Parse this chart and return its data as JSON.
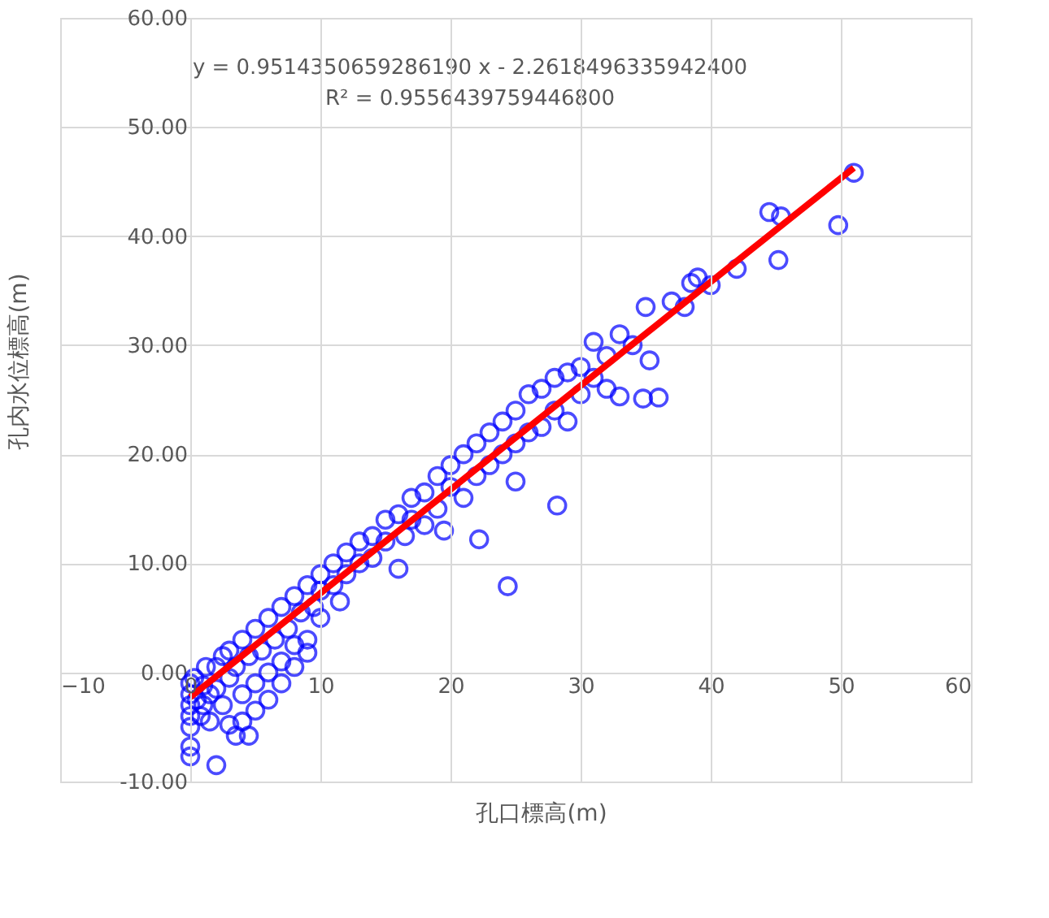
{
  "chart_data": {
    "type": "scatter",
    "xlabel": "孔口標高(m)",
    "ylabel": "孔内水位標高(m)",
    "annotations": [
      "y = 0.9514350659286190 x - 2.2618496335942400",
      "R² = 0.9556439759446800"
    ],
    "xlim": [
      -10,
      60
    ],
    "xticks": [
      -10,
      0,
      10,
      20,
      30,
      40,
      50,
      60
    ],
    "ylim": [
      -10,
      60
    ],
    "yticks": [
      {
        "value": -10,
        "label": "-10.00"
      },
      {
        "value": 0,
        "label": "0.00"
      },
      {
        "value": 10,
        "label": "10.00"
      },
      {
        "value": 20,
        "label": "20.00"
      },
      {
        "value": 30,
        "label": "30.00"
      },
      {
        "value": 40,
        "label": "40.00"
      },
      {
        "value": 50,
        "label": "50.00"
      },
      {
        "value": 60,
        "label": "60.00"
      }
    ],
    "grid": true,
    "marker": "circle",
    "legend": false,
    "series": [
      {
        "color": "#0000ff",
        "x": [
          0,
          0,
          0,
          0,
          0,
          0,
          0,
          0.3,
          0.5,
          0.8,
          1,
          1,
          1.2,
          1.5,
          1.5,
          2,
          2,
          2,
          2.5,
          2.5,
          3,
          3,
          3,
          3.5,
          3.5,
          4,
          4,
          4,
          4.5,
          4.5,
          5,
          5,
          5,
          5.5,
          6,
          6,
          6,
          6.5,
          7,
          7,
          7,
          7.5,
          8,
          8,
          8,
          8.5,
          9,
          9,
          9,
          9.5,
          10,
          10,
          10,
          11,
          11,
          11.5,
          12,
          12,
          13,
          13,
          14,
          14,
          15,
          15,
          16,
          16,
          16.5,
          17,
          17,
          18,
          18,
          19,
          19,
          19.5,
          20,
          20,
          21,
          21,
          22,
          22,
          22.2,
          23,
          23,
          24,
          24,
          24.4,
          25,
          25,
          25,
          26,
          26,
          27,
          27,
          28,
          28,
          28.2,
          29,
          29,
          30,
          30,
          31,
          31,
          32,
          32,
          33,
          33,
          34,
          34.8,
          35,
          35.3,
          36,
          37,
          38,
          38.5,
          39,
          40,
          42,
          44.5,
          45.2,
          45.4,
          49.8,
          51
        ],
        "values": [
          -1,
          -2,
          -3,
          -4,
          -5,
          -6.8,
          -7.7,
          -0.5,
          -2.5,
          -4,
          -1.2,
          -3,
          0.5,
          -2,
          -4.5,
          -8.5,
          0.5,
          -1.5,
          -3,
          1.5,
          -0.5,
          2,
          -4.8,
          -5.8,
          0.5,
          3,
          -2,
          -4.5,
          -5.8,
          1.5,
          4,
          -1,
          -3.5,
          2,
          5,
          0,
          -2.5,
          3,
          6,
          1,
          -1,
          4,
          7,
          2.5,
          0.5,
          5.5,
          8,
          3,
          1.8,
          6,
          9,
          5,
          7.5,
          10,
          8,
          6.5,
          11,
          9,
          12,
          10,
          12.5,
          10.5,
          14,
          12,
          14.5,
          9.5,
          12.5,
          16,
          14,
          16.5,
          13.5,
          18,
          15,
          13,
          19,
          17,
          20,
          16,
          21,
          18,
          12.2,
          22,
          19,
          23,
          20,
          7.9,
          24,
          21,
          17.5,
          25.5,
          22,
          26,
          22.5,
          27,
          24,
          15.3,
          27.5,
          23,
          28,
          25.5,
          30.3,
          27,
          29,
          26,
          31,
          25.3,
          30,
          25.1,
          33.5,
          28.6,
          25.2,
          34,
          33.5,
          35.7,
          36.2,
          35.5,
          37,
          42.2,
          37.8,
          41.8,
          41,
          45.8
        ]
      },
      {
        "type": "line",
        "color": "#ff0000",
        "marker": "none",
        "line_style": "solid",
        "x": [
          0,
          51
        ],
        "values": [
          -2.26,
          46.26
        ]
      }
    ]
  }
}
